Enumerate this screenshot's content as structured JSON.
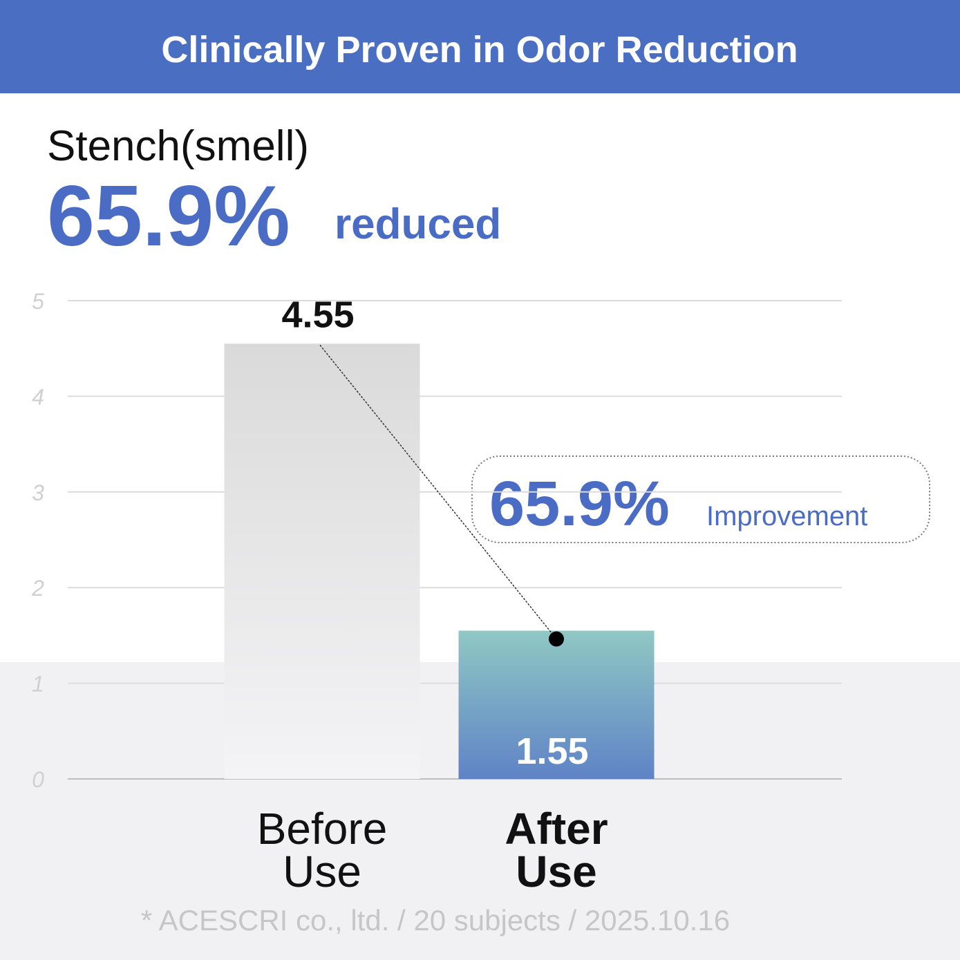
{
  "chart_data": {
    "type": "bar",
    "title": "Clinically Proven in Odor Reduction",
    "subtitle": "Stench(smell)",
    "headline": {
      "text": "65.9%",
      "suffix": "reduced"
    },
    "callout": {
      "text": "65.9%",
      "label": "Improvement"
    },
    "categories": [
      "Before Use",
      "After Use"
    ],
    "values": [
      4.55,
      1.55
    ],
    "colors": [
      [
        "#dadada",
        "#f4f4f6"
      ],
      [
        "#8fc8c4",
        "#5f83c6"
      ]
    ],
    "ylim": [
      0,
      5
    ],
    "yticks": [
      0,
      1,
      2,
      3,
      4,
      5
    ],
    "grid": true,
    "note": "* ACESCRI co., ltd. / 20 subjects / 2025.10.16"
  }
}
